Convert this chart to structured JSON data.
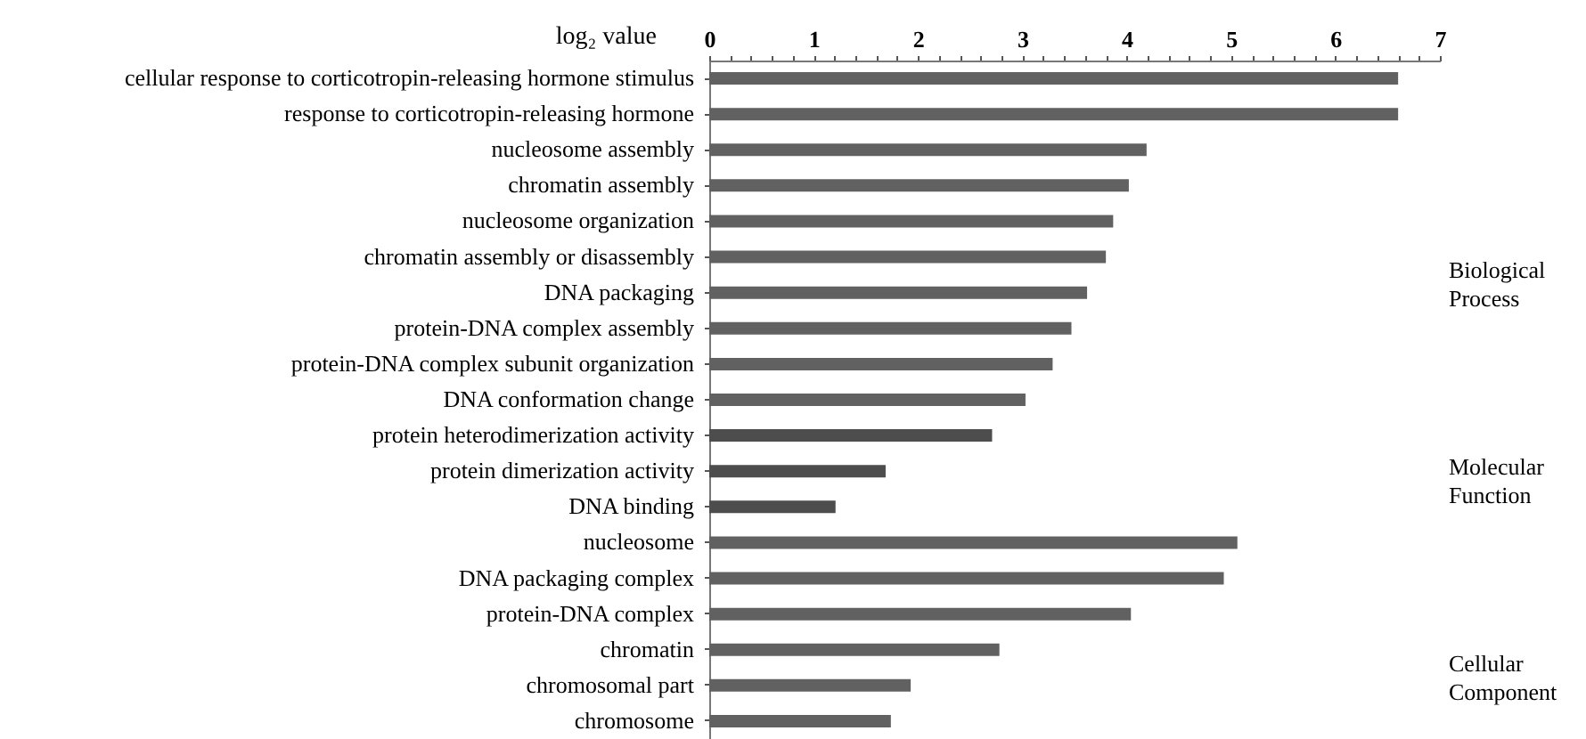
{
  "chart_data": {
    "type": "bar",
    "orientation": "horizontal",
    "xlabel": "log₂ value",
    "categories": [
      "cellular response to corticotropin-releasing hormone stimulus",
      "response to corticotropin-releasing hormone",
      "nucleosome assembly",
      "chromatin assembly",
      "nucleosome organization",
      "chromatin assembly or disassembly",
      "DNA packaging",
      "protein-DNA complex assembly",
      "protein-DNA complex subunit organization",
      "DNA conformation change",
      "protein heterodimerization activity",
      "protein dimerization activity",
      "DNA binding",
      "nucleosome",
      "DNA packaging complex",
      "protein-DNA complex",
      "chromatin",
      "chromosomal part",
      "chromosome"
    ],
    "values": [
      6.6,
      6.6,
      4.19,
      4.02,
      3.87,
      3.8,
      3.62,
      3.47,
      3.29,
      3.03,
      2.71,
      1.69,
      1.21,
      5.06,
      4.93,
      4.04,
      2.78,
      1.93,
      1.74
    ],
    "colors": [
      "#616161",
      "#616161",
      "#616161",
      "#616161",
      "#616161",
      "#616161",
      "#616161",
      "#616161",
      "#616161",
      "#616161",
      "#4d4d4d",
      "#4d4d4d",
      "#4d4d4d",
      "#616161",
      "#616161",
      "#616161",
      "#616161",
      "#616161",
      "#616161"
    ],
    "xlim": [
      0,
      7
    ],
    "xticks": [
      0,
      {
        "value": 0.2,
        "label": null
      },
      {
        "value": 0.4,
        "label": null
      },
      {
        "value": 0.6,
        "label": null
      },
      {
        "value": 0.8,
        "label": null
      },
      1,
      {
        "value": 1.2,
        "label": null
      },
      {
        "value": 1.4,
        "label": null
      },
      {
        "value": 1.6,
        "label": null
      },
      {
        "value": 1.8,
        "label": null
      },
      2,
      {
        "value": 2.2,
        "label": null
      },
      {
        "value": 2.4,
        "label": null
      },
      {
        "value": 2.6,
        "label": null
      },
      {
        "value": 2.8,
        "label": null
      },
      3,
      {
        "value": 3.2,
        "label": null
      },
      {
        "value": 3.4,
        "label": null
      },
      {
        "value": 3.6,
        "label": null
      },
      {
        "value": 3.8,
        "label": null
      },
      4,
      {
        "value": 4.2,
        "label": null
      },
      {
        "value": 4.4,
        "label": null
      },
      {
        "value": 4.6,
        "label": null
      },
      {
        "value": 4.8,
        "label": null
      },
      5,
      {
        "value": 5.2,
        "label": null
      },
      {
        "value": 5.4,
        "label": null
      },
      {
        "value": 5.6,
        "label": null
      },
      {
        "value": 5.8,
        "label": null
      },
      6,
      {
        "value": 6.2,
        "label": null
      },
      {
        "value": 6.4,
        "label": null
      },
      {
        "value": 6.6,
        "label": null
      },
      {
        "value": 6.8,
        "label": null
      },
      7
    ],
    "annotations": [
      "Biological Process",
      "Molecular Function",
      "Cellular Component"
    ]
  }
}
